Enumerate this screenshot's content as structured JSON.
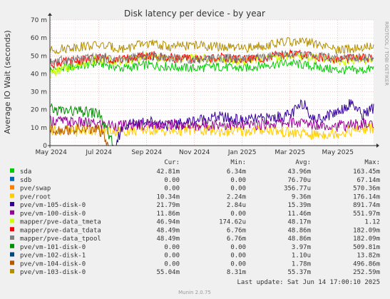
{
  "chart_data": {
    "type": "line",
    "title": "Disk latency per device - by year",
    "ylabel": "Average IO Wait (seconds)",
    "side_label": "RRDTOOL / TOBI OETIKER",
    "ylim": [
      0,
      70
    ],
    "y_ticks": [
      0,
      10,
      20,
      30,
      40,
      50,
      60,
      70
    ],
    "y_tick_labels": [
      "0",
      "10 m",
      "20 m",
      "30 m",
      "40 m",
      "50 m",
      "60 m",
      "70 m"
    ],
    "x_ticks": [
      {
        "label": "May 2024",
        "month": 0
      },
      {
        "label": "Jul 2024",
        "month": 2
      },
      {
        "label": "Sep 2024",
        "month": 4
      },
      {
        "label": "Nov 2024",
        "month": 6
      },
      {
        "label": "Jan 2025",
        "month": 8
      },
      {
        "label": "Mar 2025",
        "month": 10
      },
      {
        "label": "May 2025",
        "month": 12
      }
    ],
    "x_range_months": [
      -0.05,
      13.5
    ],
    "grid": true,
    "legend_headers": {
      "cur": "Cur:",
      "min": "Min:",
      "avg": "Avg:",
      "max": "Max:"
    },
    "series": [
      {
        "name": "sda",
        "color": "#00cc00",
        "cur": "42.81m",
        "min": "6.34m",
        "avg": "43.96m",
        "max": "163.45m",
        "points": [
          [
            0,
            42
          ],
          [
            1,
            44
          ],
          [
            2,
            46
          ],
          [
            3,
            43
          ],
          [
            4,
            45
          ],
          [
            5,
            44
          ],
          [
            6,
            43
          ],
          [
            7,
            44
          ],
          [
            8,
            43
          ],
          [
            9,
            45
          ],
          [
            10,
            46
          ],
          [
            11,
            44
          ],
          [
            12,
            42
          ],
          [
            13,
            42
          ],
          [
            13.5,
            43
          ]
        ]
      },
      {
        "name": "sdb",
        "color": "#0066b3",
        "cur": "0.00",
        "min": "0.00",
        "avg": "76.70u",
        "max": "67.14m",
        "points": [
          [
            0,
            0
          ],
          [
            13.5,
            0
          ]
        ]
      },
      {
        "name": "pve/swap",
        "color": "#ff8000",
        "cur": "0.00",
        "min": "0.00",
        "avg": "356.77u",
        "max": "570.36m",
        "points": [
          [
            0,
            0
          ],
          [
            13.5,
            0
          ]
        ]
      },
      {
        "name": "pve/root",
        "color": "#ffcc00",
        "cur": "10.34m",
        "min": "2.24m",
        "avg": "9.36m",
        "max": "176.14m",
        "points": [
          [
            0,
            9
          ],
          [
            1,
            8
          ],
          [
            2,
            9
          ],
          [
            3,
            8
          ],
          [
            4,
            9
          ],
          [
            5,
            8
          ],
          [
            6,
            9
          ],
          [
            7,
            8
          ],
          [
            8,
            8
          ],
          [
            9,
            9
          ],
          [
            10,
            7
          ],
          [
            11,
            6
          ],
          [
            12,
            7
          ],
          [
            13,
            9
          ],
          [
            13.5,
            10
          ]
        ]
      },
      {
        "name": "pve/vm-105-disk-0",
        "color": "#330099",
        "cur": "21.79m",
        "min": "2.84u",
        "avg": "15.39m",
        "max": "891.74m",
        "points": [
          [
            0,
            0
          ],
          [
            2.7,
            0
          ],
          [
            3,
            11
          ],
          [
            4,
            14
          ],
          [
            5,
            11
          ],
          [
            6,
            14
          ],
          [
            7,
            16
          ],
          [
            8,
            14
          ],
          [
            9,
            15
          ],
          [
            10,
            17
          ],
          [
            10.6,
            24
          ],
          [
            11,
            14
          ],
          [
            12,
            19
          ],
          [
            12.6,
            24
          ],
          [
            13,
            17
          ],
          [
            13.5,
            21
          ]
        ]
      },
      {
        "name": "pve/vm-100-disk-0",
        "color": "#990099",
        "cur": "11.86m",
        "min": "0.00",
        "avg": "11.46m",
        "max": "551.97m",
        "points": [
          [
            0,
            14
          ],
          [
            1,
            13
          ],
          [
            2,
            12
          ],
          [
            3,
            11
          ],
          [
            4,
            12
          ],
          [
            5,
            12
          ],
          [
            6,
            11
          ],
          [
            7,
            12
          ],
          [
            8,
            11
          ],
          [
            9,
            12
          ],
          [
            10,
            13
          ],
          [
            11,
            12
          ],
          [
            12,
            11
          ],
          [
            13,
            12
          ],
          [
            13.5,
            12
          ]
        ]
      },
      {
        "name": "mapper/pve-data_tmeta",
        "color": "#ccff00",
        "cur": "46.94m",
        "min": "174.62u",
        "avg": "48.17m",
        "max": "1.12",
        "points": [
          [
            0,
            40
          ],
          [
            1,
            45
          ],
          [
            2,
            48
          ],
          [
            3,
            47
          ],
          [
            4,
            50
          ],
          [
            5,
            48
          ],
          [
            6,
            49
          ],
          [
            7,
            48
          ],
          [
            8,
            47
          ],
          [
            9,
            49
          ],
          [
            10,
            50
          ],
          [
            11,
            49
          ],
          [
            12,
            47
          ],
          [
            13,
            48
          ],
          [
            13.5,
            47
          ]
        ]
      },
      {
        "name": "mapper/pve-data_tdata",
        "color": "#ff0000",
        "cur": "48.49m",
        "min": "6.76m",
        "avg": "48.86m",
        "max": "182.09m",
        "points": [
          [
            0,
            46
          ],
          [
            1,
            47
          ],
          [
            2,
            49
          ],
          [
            3,
            48
          ],
          [
            4,
            50
          ],
          [
            5,
            49
          ],
          [
            6,
            48
          ],
          [
            7,
            49
          ],
          [
            8,
            48
          ],
          [
            9,
            49
          ],
          [
            10,
            51
          ],
          [
            11,
            50
          ],
          [
            12,
            48
          ],
          [
            13,
            49
          ],
          [
            13.5,
            48
          ]
        ]
      },
      {
        "name": "mapper/pve-data_tpool",
        "color": "#808080",
        "cur": "48.49m",
        "min": "6.76m",
        "avg": "48.86m",
        "max": "182.09m",
        "points": [
          [
            0,
            47
          ],
          [
            1,
            48
          ],
          [
            2,
            49
          ],
          [
            3,
            48
          ],
          [
            4,
            50
          ],
          [
            5,
            49
          ],
          [
            6,
            48
          ],
          [
            7,
            49
          ],
          [
            8,
            48
          ],
          [
            9,
            49
          ],
          [
            10,
            51
          ],
          [
            11,
            50
          ],
          [
            12,
            48
          ],
          [
            13,
            49
          ],
          [
            13.5,
            48
          ]
        ]
      },
      {
        "name": "pve/vm-101-disk-0",
        "color": "#008f00",
        "cur": "0.00",
        "min": "0.00",
        "avg": "3.97m",
        "max": "509.81m",
        "points": [
          [
            0,
            20
          ],
          [
            1,
            19
          ],
          [
            2,
            18
          ],
          [
            2.6,
            0
          ],
          [
            13.5,
            0
          ]
        ]
      },
      {
        "name": "pve/vm-102-disk-1",
        "color": "#00487d",
        "cur": "0.00",
        "min": "0.00",
        "avg": "1.10u",
        "max": "13.82m",
        "points": [
          [
            0,
            0
          ],
          [
            13.5,
            0
          ]
        ]
      },
      {
        "name": "pve/vm-104-disk-0",
        "color": "#b35a00",
        "cur": "0.00",
        "min": "0.00",
        "avg": "1.78m",
        "max": "496.86m",
        "points": [
          [
            0,
            9
          ],
          [
            1,
            9
          ],
          [
            2,
            9
          ],
          [
            2.4,
            0
          ],
          [
            13.5,
            0
          ]
        ]
      },
      {
        "name": "pve/vm-103-disk-0",
        "color": "#b38f00",
        "cur": "55.04m",
        "min": "8.31m",
        "avg": "55.37m",
        "max": "252.59m",
        "points": [
          [
            0,
            53
          ],
          [
            1,
            55
          ],
          [
            2,
            56
          ],
          [
            3,
            54
          ],
          [
            4,
            57
          ],
          [
            5,
            55
          ],
          [
            6,
            56
          ],
          [
            7,
            55
          ],
          [
            8,
            54
          ],
          [
            9,
            56
          ],
          [
            10,
            58
          ],
          [
            11,
            57
          ],
          [
            12,
            53
          ],
          [
            13,
            55
          ],
          [
            13.5,
            55
          ]
        ]
      }
    ],
    "last_update": "Last update: Sat Jun 14 17:00:10 2025",
    "footer": "Munin 2.0.75"
  }
}
